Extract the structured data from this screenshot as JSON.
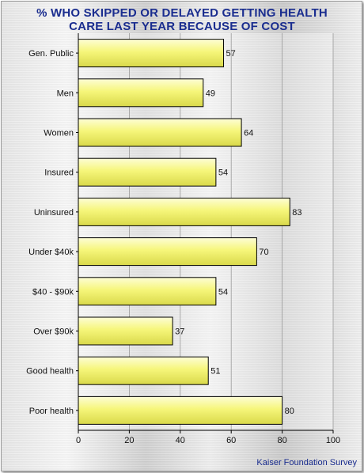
{
  "chart_data": {
    "type": "bar",
    "orientation": "horizontal",
    "title_lines": [
      "% WHO SKIPPED OR DELAYED GETTING HEALTH",
      "CARE LAST YEAR BECAUSE OF COST"
    ],
    "categories": [
      "Gen. Public",
      "Men",
      "Women",
      "Insured",
      "Uninsured",
      "Under $40k",
      "$40 - $90k",
      "Over $90k",
      "Good health",
      "Poor health"
    ],
    "values": [
      57,
      49,
      64,
      54,
      83,
      70,
      54,
      37,
      51,
      80
    ],
    "xlim": [
      0,
      100
    ],
    "x_ticks": [
      0,
      20,
      40,
      60,
      80,
      100
    ],
    "xlabel": "",
    "ylabel": "",
    "grid": "vertical",
    "bar_color": "#f4f47a",
    "source": "Kaiser Foundation Survey"
  }
}
